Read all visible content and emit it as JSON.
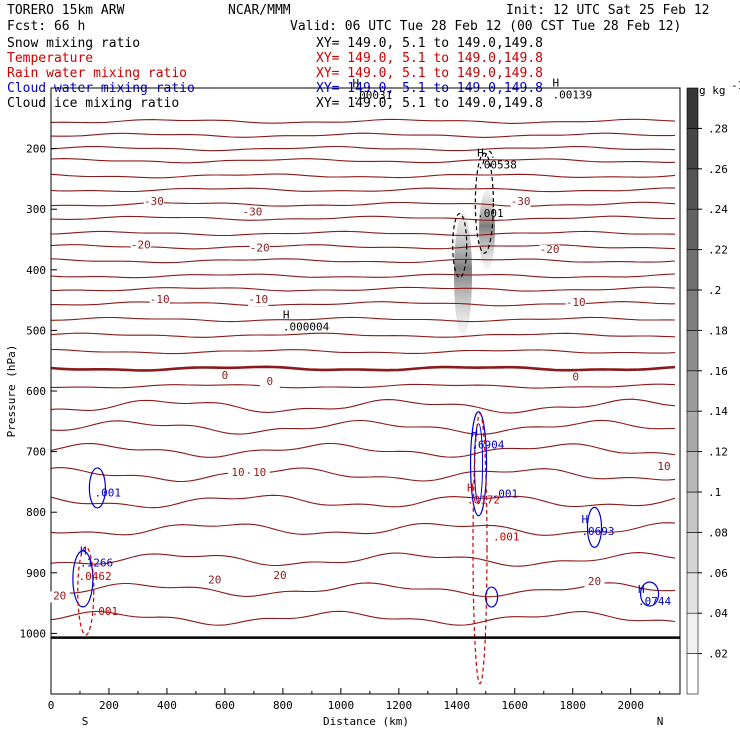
{
  "header": {
    "model": "TORERO  15km ARW",
    "center": "NCAR/MMM",
    "init": "Init: 12 UTC Sat 25 Feb 12",
    "fcst": "Fcst:   66 h",
    "valid": "Valid: 06 UTC Tue 28 Feb 12 (00 CST Tue 28 Feb 12)"
  },
  "fields": [
    {
      "name": "Snow mixing ratio",
      "xy": "XY= 149.0,  5.1 to 149.0,149.8",
      "color": "#000000"
    },
    {
      "name": "Temperature",
      "xy": "XY= 149.0,  5.1 to 149.0,149.8",
      "color": "#cc0000"
    },
    {
      "name": "Rain water mixing ratio",
      "xy": "XY= 149.0,  5.1 to 149.0,149.8",
      "color": "#cc0000"
    },
    {
      "name": "Cloud water mixing ratio",
      "xy": "XY= 149.0,  5.1 to 149.0,149.8",
      "color": "#0000cc"
    },
    {
      "name": "Cloud ice mixing ratio",
      "xy": "XY= 149.0,  5.1 to 149.0,149.8",
      "color": "#000000"
    }
  ],
  "chart_data": {
    "type": "contour",
    "xlabel": "Distance (km)",
    "ylabel": "Pressure (hPa)",
    "xlim": [
      0,
      2170
    ],
    "ylim": [
      1100,
      100
    ],
    "x_ticks": [
      0,
      200,
      400,
      600,
      800,
      1000,
      1200,
      1400,
      1600,
      1800,
      2000
    ],
    "y_ticks": [
      200,
      300,
      400,
      500,
      600,
      700,
      800,
      900,
      1000
    ],
    "endpoints": {
      "left": "S",
      "right": "N"
    },
    "colorbar": {
      "unit": "g kg",
      "unit_exp": "-1",
      "ticks": [
        ".02",
        ".04",
        ".06",
        ".08",
        ".1",
        ".12",
        ".14",
        ".16",
        ".18",
        ".2",
        ".22",
        ".24",
        ".26",
        ".28"
      ]
    },
    "colors": {
      "temperature": "#8b1a1a",
      "rain": "#cc0000",
      "cloud_water": "#0000cc",
      "ice": "#000000",
      "surface": "#000000"
    },
    "temperature_labels": [
      {
        "text": "-30",
        "x": 355,
        "p": 293
      },
      {
        "text": "-30",
        "x": 695,
        "p": 310
      },
      {
        "text": "-30",
        "x": 1620,
        "p": 293
      },
      {
        "text": "-20",
        "x": 310,
        "p": 365
      },
      {
        "text": "-20",
        "x": 720,
        "p": 370
      },
      {
        "text": "-20",
        "x": 1720,
        "p": 372
      },
      {
        "text": "-10",
        "x": 375,
        "p": 455
      },
      {
        "text": "-10",
        "x": 715,
        "p": 455
      },
      {
        "text": "-10",
        "x": 1810,
        "p": 460
      },
      {
        "text": "0",
        "x": 600,
        "p": 580
      },
      {
        "text": "0",
        "x": 755,
        "p": 590
      },
      {
        "text": "0",
        "x": 1810,
        "p": 583
      },
      {
        "text": "10",
        "x": 645,
        "p": 740
      },
      {
        "text": "10",
        "x": 720,
        "p": 740
      },
      {
        "text": "10",
        "x": 2115,
        "p": 730
      },
      {
        "text": "20",
        "x": 30,
        "p": 944
      },
      {
        "text": "20",
        "x": 565,
        "p": 918
      },
      {
        "text": "20",
        "x": 790,
        "p": 910
      },
      {
        "text": "20",
        "x": 1875,
        "p": 920
      }
    ],
    "isotherm_levels": [
      155,
      178,
      200,
      220,
      245,
      268,
      292,
      315,
      340,
      362,
      385,
      410,
      432,
      456,
      482,
      508,
      535,
      563,
      592,
      625,
      660,
      698,
      738,
      782,
      828,
      878,
      928,
      975
    ],
    "max_labels": [
      {
        "mark": "H",
        "value": ".00031",
        "x": 1040,
        "p": 118,
        "color": "#000000"
      },
      {
        "mark": "H",
        "value": ".00139",
        "x": 1730,
        "p": 117,
        "color": "#000000"
      },
      {
        "mark": "H",
        "value": ".00538",
        "x": 1470,
        "p": 233,
        "color": "#000000"
      },
      {
        "mark": "",
        "value": ".001",
        "x": 1470,
        "p": 313,
        "color": "#000000"
      },
      {
        "mark": "H",
        "value": ".000004",
        "x": 800,
        "p": 500,
        "color": "#000000"
      },
      {
        "mark": "H",
        "value": ".6904",
        "x": 1450,
        "p": 695,
        "color": "#0000cc"
      },
      {
        "mark": "H",
        "value": ".0172",
        "x": 1435,
        "p": 786,
        "color": "#cc0000"
      },
      {
        "mark": "",
        "value": ".001",
        "x": 1520,
        "p": 776,
        "color": "#0000cc"
      },
      {
        "mark": "",
        "value": ".001",
        "x": 1525,
        "p": 847,
        "color": "#cc0000"
      },
      {
        "mark": "",
        "value": ".001",
        "x": 150,
        "p": 774,
        "color": "#0000cc"
      },
      {
        "mark": "H",
        "value": ".0693",
        "x": 1830,
        "p": 838,
        "color": "#0000cc"
      },
      {
        "mark": "H",
        "value": ".1266",
        "x": 100,
        "p": 890,
        "color": "#0000cc"
      },
      {
        "mark": "",
        "value": ".0462",
        "x": 95,
        "p": 912,
        "color": "#cc0000"
      },
      {
        "mark": "",
        "value": ".001",
        "x": 140,
        "p": 970,
        "color": "#cc0000"
      },
      {
        "mark": "H",
        "value": ".0744",
        "x": 2025,
        "p": 953,
        "color": "#0000cc"
      }
    ],
    "surface_pressure": 1007
  }
}
